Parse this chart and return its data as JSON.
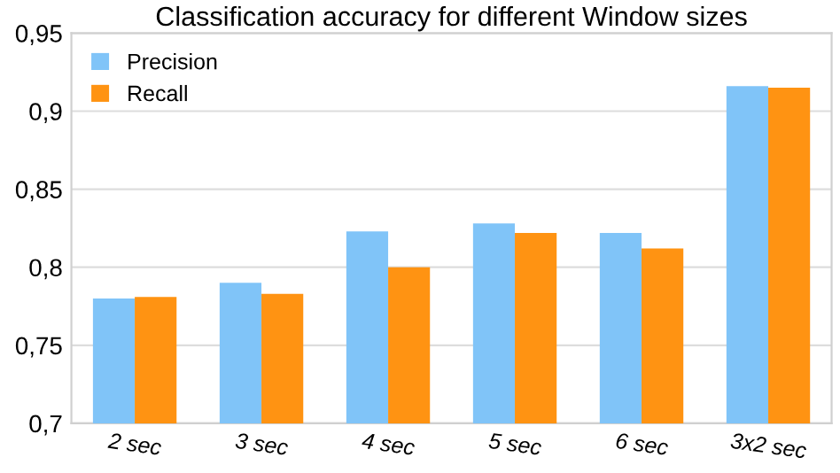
{
  "chart_data": {
    "type": "bar",
    "title": "Classification accuracy for different Window sizes",
    "categories": [
      "2 sec",
      "3 sec",
      "4 sec",
      "5 sec",
      "6 sec",
      "3x2 sec"
    ],
    "series": [
      {
        "name": "Precision",
        "color": "#80c4f8",
        "values": [
          0.78,
          0.79,
          0.823,
          0.828,
          0.822,
          0.916
        ]
      },
      {
        "name": "Recall",
        "color": "#ff9312",
        "values": [
          0.781,
          0.783,
          0.8,
          0.822,
          0.812,
          0.915
        ]
      }
    ],
    "ylim": [
      0.7,
      0.95
    ],
    "yticks": [
      {
        "value": 0.7,
        "label": "0,7"
      },
      {
        "value": 0.75,
        "label": "0,75"
      },
      {
        "value": 0.8,
        "label": "0,8"
      },
      {
        "value": 0.85,
        "label": "0,85"
      },
      {
        "value": 0.9,
        "label": "0,9"
      },
      {
        "value": 0.95,
        "label": "0,95"
      }
    ],
    "grid": "y",
    "legend": "top left"
  }
}
